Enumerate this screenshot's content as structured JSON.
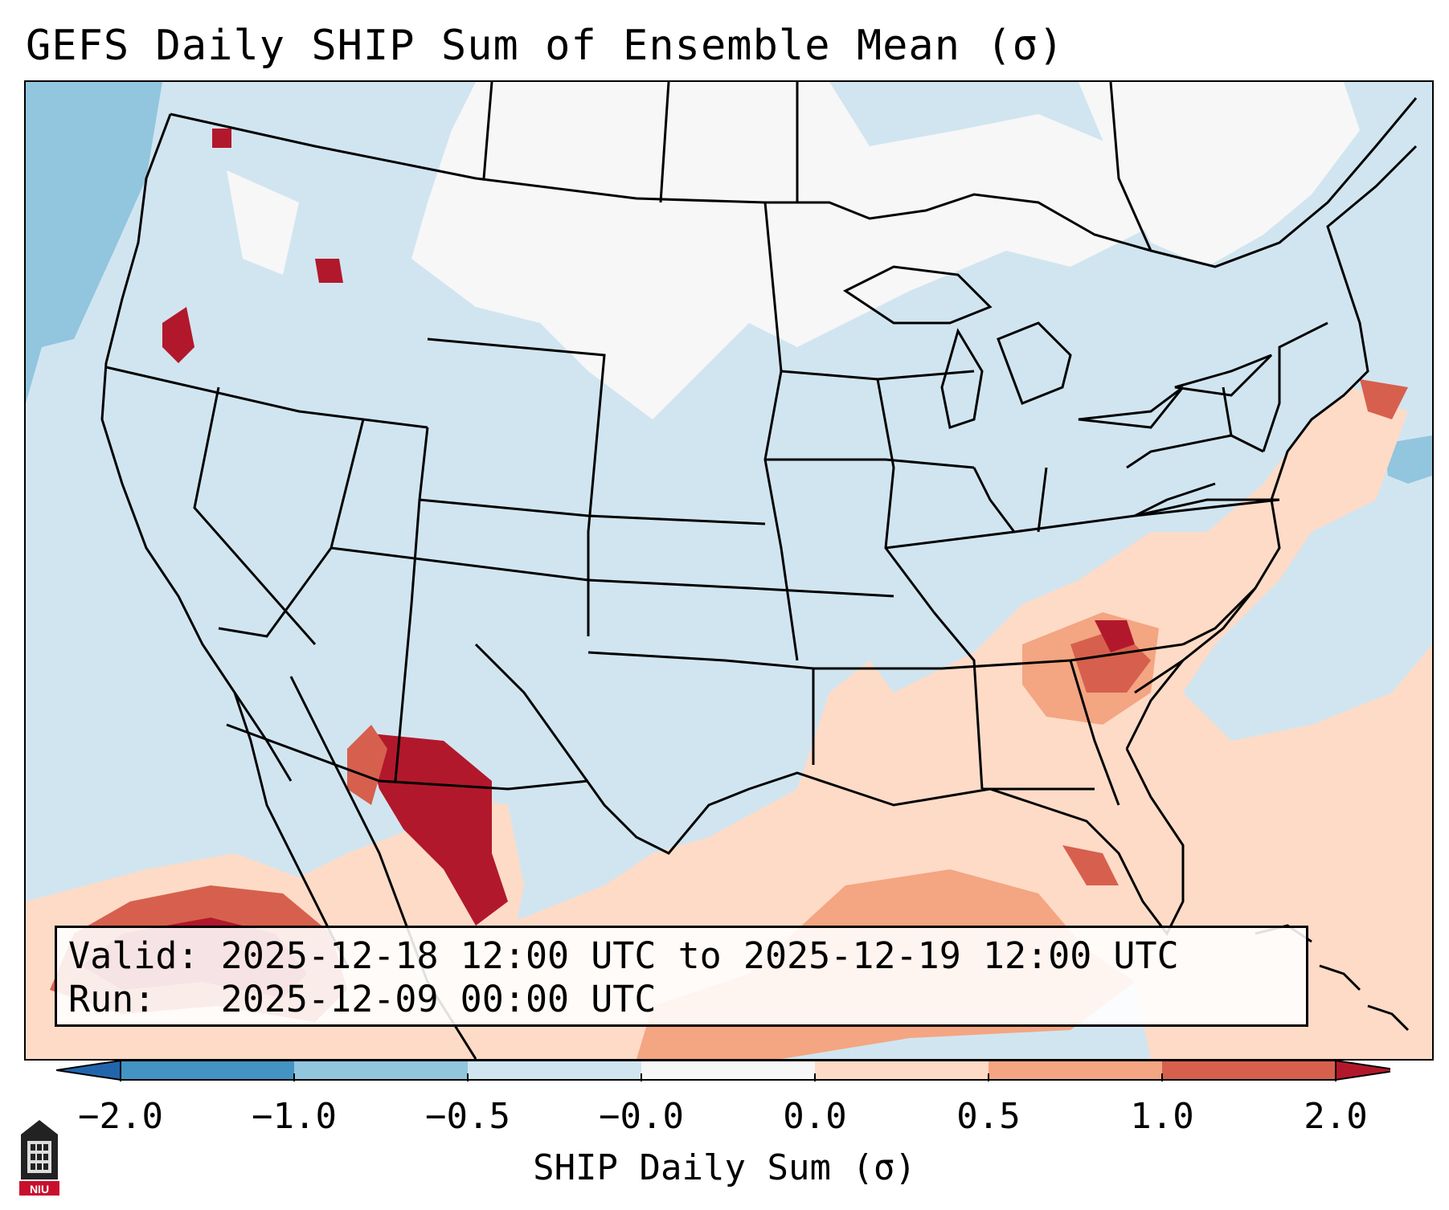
{
  "title": "GEFS Daily SHIP Sum of Ensemble Mean (σ)",
  "info": {
    "valid_line": "Valid: 2025-12-18 12:00 UTC to 2025-12-19 12:00 UTC",
    "run_line": "Run:   2025-12-09 00:00 UTC"
  },
  "colorbar": {
    "label": "SHIP Daily Sum (σ)",
    "ticks": [
      "−2.0",
      "−1.0",
      "−0.5",
      "−0.0",
      "0.0",
      "0.5",
      "1.0",
      "2.0"
    ],
    "colors": [
      "#4393c3",
      "#92c5de",
      "#d1e5f0",
      "#f7f7f7",
      "#fddbc7",
      "#f4a582",
      "#d6604d"
    ],
    "extend_low_color": "#2166ac",
    "extend_high_color": "#b2182b"
  },
  "map": {
    "region": "Contiguous United States",
    "ocean_color": "#d1e5f0"
  },
  "logo": {
    "text": "NIU",
    "icon": "university-tower-icon"
  }
}
